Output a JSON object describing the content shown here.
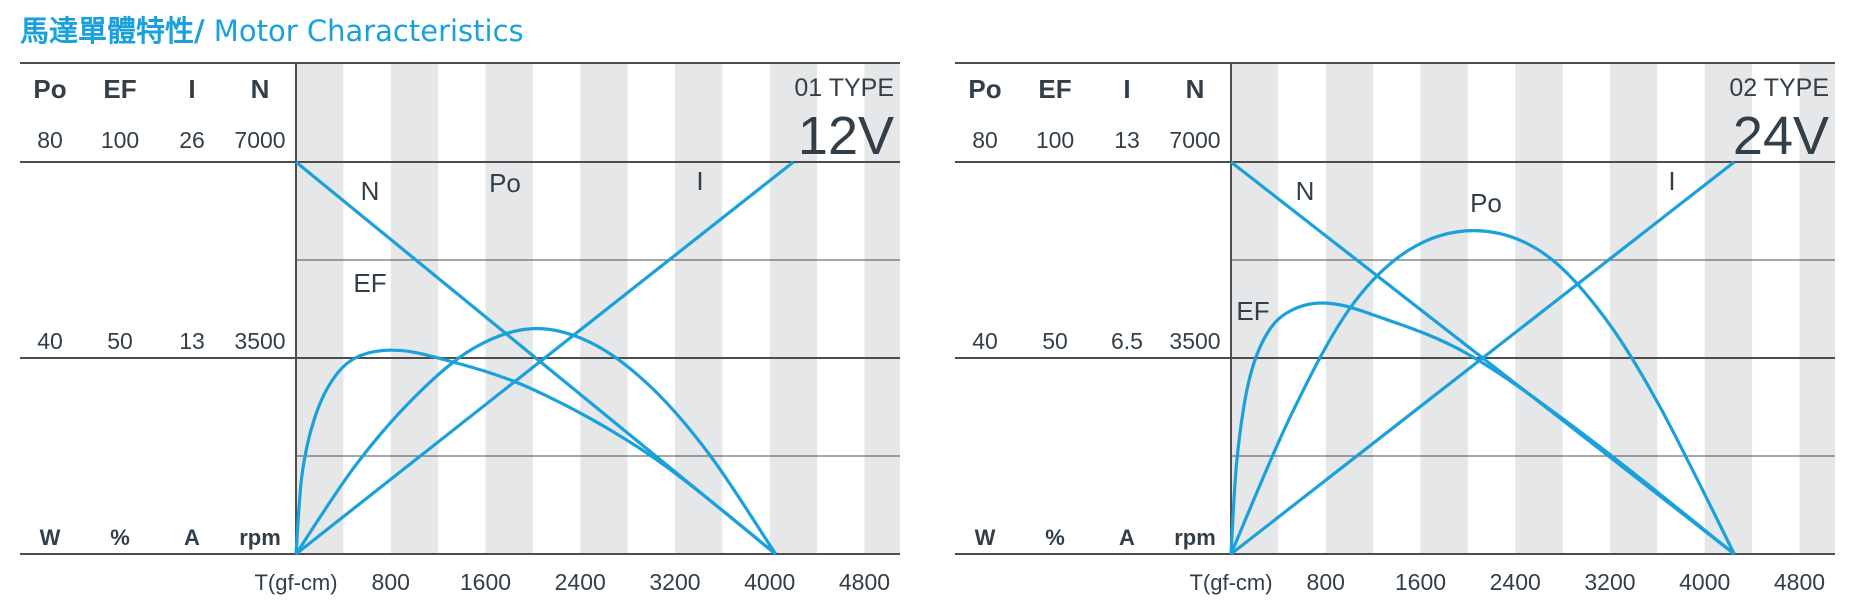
{
  "header": {
    "title_zh": "馬達單體特性/",
    "title_en": " Motor Characteristics"
  },
  "colors": {
    "accent": "#1aa1dc",
    "stripe": "#e6e7e8",
    "axis": "#4d4d4f",
    "text": "#333f48"
  },
  "chart_data": [
    {
      "type": "line",
      "type_label": "01 TYPE",
      "voltage": "12V",
      "axis_headers": [
        "Po",
        "EF",
        "I",
        "N"
      ],
      "axis_units": [
        "W",
        "%",
        "A",
        "rpm"
      ],
      "axis_top_values": [
        "80",
        "100",
        "26",
        "7000"
      ],
      "axis_mid_values": [
        "40",
        "50",
        "13",
        "3500"
      ],
      "xlabel": "T(gf-cm)",
      "x_ticks": [
        "800",
        "1600",
        "2400",
        "3200",
        "4000",
        "4800"
      ],
      "xlim": [
        0,
        5100
      ],
      "y_primary_axis": "N (rpm)",
      "ylim": [
        0,
        7000
      ],
      "series": [
        {
          "name": "N",
          "unit": "rpm",
          "points": [
            [
              0,
              7000
            ],
            [
              4050,
              0
            ]
          ]
        },
        {
          "name": "I",
          "unit": "A",
          "points": [
            [
              0,
              0
            ],
            [
              4200,
              26
            ]
          ]
        },
        {
          "name": "Po",
          "unit": "W",
          "points": [
            [
              0,
              0
            ],
            [
              500,
              18
            ],
            [
              1000,
              32
            ],
            [
              1500,
              42
            ],
            [
              2000,
              46
            ],
            [
              2500,
              43
            ],
            [
              3000,
              34
            ],
            [
              3500,
              20
            ],
            [
              4050,
              0
            ]
          ]
        },
        {
          "name": "EF",
          "unit": "%",
          "points": [
            [
              0,
              0
            ],
            [
              50,
              20
            ],
            [
              150,
              34
            ],
            [
              300,
              44
            ],
            [
              500,
              50
            ],
            [
              800,
              52
            ],
            [
              1200,
              50
            ],
            [
              2000,
              42
            ],
            [
              3000,
              25
            ],
            [
              4050,
              0
            ]
          ]
        }
      ],
      "curve_labels": [
        "N",
        "Po",
        "I",
        "EF"
      ]
    },
    {
      "type": "line",
      "type_label": "02 TYPE",
      "voltage": "24V",
      "axis_headers": [
        "Po",
        "EF",
        "I",
        "N"
      ],
      "axis_units": [
        "W",
        "%",
        "A",
        "rpm"
      ],
      "axis_top_values": [
        "80",
        "100",
        "13",
        "7000"
      ],
      "axis_mid_values": [
        "40",
        "50",
        "6.5",
        "3500"
      ],
      "xlabel": "T(gf-cm)",
      "x_ticks": [
        "800",
        "1600",
        "2400",
        "3200",
        "4000",
        "4800"
      ],
      "xlim": [
        0,
        5100
      ],
      "y_primary_axis": "N (rpm)",
      "ylim": [
        0,
        7000
      ],
      "series": [
        {
          "name": "N",
          "unit": "rpm",
          "points": [
            [
              0,
              7000
            ],
            [
              4250,
              0
            ]
          ]
        },
        {
          "name": "I",
          "unit": "A",
          "points": [
            [
              0,
              0
            ],
            [
              4250,
              13
            ]
          ]
        },
        {
          "name": "Po",
          "unit": "W",
          "points": [
            [
              0,
              0
            ],
            [
              500,
              28
            ],
            [
              1000,
              50
            ],
            [
              1500,
              62
            ],
            [
              2050,
              66
            ],
            [
              2600,
              62
            ],
            [
              3100,
              50
            ],
            [
              3600,
              31
            ],
            [
              4250,
              0
            ]
          ]
        },
        {
          "name": "EF",
          "unit": "%",
          "points": [
            [
              0,
              0
            ],
            [
              50,
              24
            ],
            [
              150,
              44
            ],
            [
              300,
              56
            ],
            [
              500,
              62
            ],
            [
              800,
              64
            ],
            [
              1200,
              61
            ],
            [
              2000,
              51
            ],
            [
              3000,
              30
            ],
            [
              4250,
              0
            ]
          ]
        }
      ],
      "curve_labels": [
        "N",
        "Po",
        "I",
        "EF"
      ]
    }
  ]
}
